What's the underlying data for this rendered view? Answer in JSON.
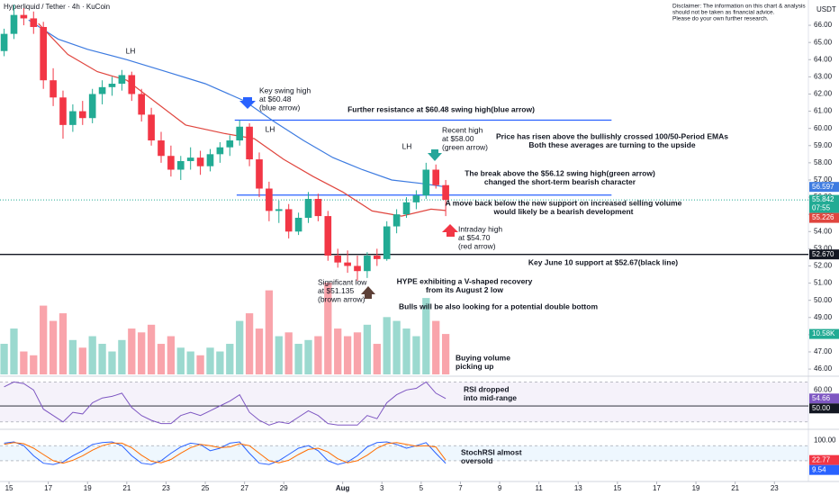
{
  "chart_data": {
    "type": "candlestick",
    "title": "Hyperliquid / Tether · 4h · KuCoin",
    "currency": "USDT",
    "disclaimer": [
      "Disclaimer: The information on this chart & analysis",
      "should not be taken as financial advice.",
      "Please do your own further research."
    ],
    "up_color": "#22ab94",
    "down_color": "#f23645",
    "xlim": [
      14.54,
      55.73
    ],
    "xticks": [
      15,
      17,
      19,
      21,
      23,
      25,
      27,
      29,
      {
        "value": 32,
        "label": "Aug"
      },
      {
        "value": 34,
        "label": "3"
      },
      {
        "value": 36,
        "label": "5"
      },
      {
        "value": 38,
        "label": "7"
      },
      {
        "value": 40,
        "label": "9"
      },
      {
        "value": 42,
        "label": "11"
      },
      {
        "value": 44,
        "label": "13"
      },
      {
        "value": 46,
        "label": "15"
      },
      {
        "value": 48,
        "label": "17"
      },
      {
        "value": 50,
        "label": "19"
      },
      {
        "value": 52,
        "label": "21"
      },
      {
        "value": 54,
        "label": "23"
      }
    ],
    "ylim": [
      45.69,
      67.47
    ],
    "yticks": [
      {
        "value": 46,
        "label": "46.00"
      },
      {
        "value": 47,
        "label": "47.00"
      },
      {
        "value": 48,
        "label": "48.00"
      },
      {
        "value": 49,
        "label": "49.00"
      },
      {
        "value": 50,
        "label": "50.00"
      },
      {
        "value": 51,
        "label": "51.00"
      },
      {
        "value": 52,
        "label": "52.00"
      },
      {
        "value": 53,
        "label": "53.00"
      },
      {
        "value": 54,
        "label": "54.00"
      },
      {
        "value": 55,
        "label": "55.00"
      },
      {
        "value": 56,
        "label": "56.00"
      },
      {
        "value": 57,
        "label": "57.00"
      },
      {
        "value": 58,
        "label": "58.00"
      },
      {
        "value": 59,
        "label": "59.00"
      },
      {
        "value": 60,
        "label": "60.00"
      },
      {
        "value": 61,
        "label": "61.00"
      },
      {
        "value": 62,
        "label": "62.00"
      },
      {
        "value": 63,
        "label": "63.00"
      },
      {
        "value": 64,
        "label": "64.00"
      },
      {
        "value": 65,
        "label": "65.00"
      },
      {
        "value": 66,
        "label": "66.00"
      }
    ],
    "x": [
      14.75,
      15.25,
      15.75,
      16.25,
      16.75,
      17.25,
      17.75,
      18.25,
      18.75,
      19.25,
      19.75,
      20.25,
      20.75,
      21.25,
      21.75,
      22.25,
      22.75,
      23.25,
      23.75,
      24.25,
      24.75,
      25.25,
      25.75,
      26.25,
      26.75,
      27.25,
      27.75,
      28.25,
      28.75,
      29.25,
      29.75,
      30.25,
      30.75,
      31.25,
      31.75,
      32.25,
      32.75,
      33.25,
      33.75,
      34.25,
      34.75,
      35.25,
      35.75,
      36.25,
      36.75,
      37.25
    ],
    "open": [
      64.5,
      65.5,
      66.6,
      66.4,
      65.9,
      62.8,
      61.8,
      60.2,
      61.0,
      60.6,
      62.0,
      62.4,
      62.6,
      63.1,
      62.0,
      60.8,
      59.3,
      58.4,
      57.6,
      58.1,
      58.3,
      57.8,
      58.5,
      58.9,
      59.3,
      60.1,
      58.2,
      56.5,
      55.2,
      55.3,
      54.0,
      54.8,
      55.9,
      54.9,
      52.6,
      52.2,
      52.0,
      51.7,
      52.6,
      52.4,
      54.3,
      55.0,
      55.7,
      56.1,
      57.6,
      56.7
    ],
    "high": [
      65.8,
      67.2,
      67.0,
      66.8,
      66.2,
      63.5,
      62.2,
      61.4,
      61.6,
      62.3,
      62.8,
      63.0,
      63.4,
      63.3,
      62.3,
      61.2,
      59.8,
      59.0,
      58.4,
      58.9,
      58.7,
      58.8,
      59.2,
      59.6,
      60.48,
      60.3,
      58.6,
      56.9,
      55.8,
      55.6,
      55.1,
      56.3,
      56.2,
      55.2,
      53.0,
      52.9,
      52.6,
      52.8,
      53.0,
      54.6,
      55.3,
      56.0,
      56.4,
      58.0,
      57.9,
      57.0
    ],
    "low": [
      64.2,
      65.2,
      66.0,
      65.5,
      62.3,
      61.3,
      59.4,
      59.8,
      60.2,
      60.3,
      61.4,
      61.9,
      62.2,
      61.6,
      60.4,
      59.0,
      58.0,
      57.2,
      57.0,
      57.6,
      57.3,
      57.5,
      58.0,
      58.4,
      59.0,
      57.8,
      56.0,
      54.6,
      54.5,
      53.6,
      53.8,
      54.5,
      54.6,
      52.3,
      51.9,
      51.6,
      51.135,
      51.3,
      52.0,
      52.3,
      53.9,
      54.8,
      55.3,
      55.9,
      56.5,
      54.9
    ],
    "close": [
      65.5,
      66.6,
      66.4,
      65.9,
      62.8,
      61.8,
      60.2,
      61.0,
      60.6,
      62.0,
      62.4,
      62.6,
      63.1,
      62.0,
      60.8,
      59.3,
      58.4,
      57.6,
      58.1,
      58.3,
      57.8,
      58.5,
      58.9,
      59.3,
      60.1,
      58.2,
      56.5,
      55.2,
      55.3,
      54.0,
      54.8,
      55.9,
      54.9,
      52.6,
      52.2,
      52.0,
      51.7,
      52.6,
      52.4,
      54.3,
      55.0,
      55.7,
      56.1,
      57.6,
      56.7,
      55.842
    ],
    "countdown": "07:55",
    "ema_lines": [
      {
        "color": "#3d7be0",
        "x": [
          16,
          17.5,
          19,
          21,
          23,
          25,
          27,
          28.5,
          30,
          31.5,
          33,
          34.5,
          36,
          37.25
        ],
        "values": [
          66.3,
          65.2,
          64.6,
          64.0,
          63.3,
          62.6,
          61.6,
          60.4,
          59.3,
          58.3,
          57.6,
          57.0,
          56.8,
          56.597
        ]
      },
      {
        "color": "#e0463f",
        "x": [
          16.5,
          18,
          19.5,
          21,
          22.5,
          24,
          26,
          27.5,
          29,
          30.5,
          32,
          33.5,
          35,
          36.5,
          37.25
        ],
        "values": [
          66.1,
          64.3,
          63.3,
          62.8,
          61.5,
          60.2,
          59.7,
          59.4,
          58.2,
          57.2,
          56.3,
          55.2,
          54.9,
          55.3,
          55.226
        ]
      }
    ],
    "price_labels": [
      {
        "value": 56.597,
        "color": "#3d7be0"
      },
      {
        "value": 55.842,
        "color": "#22ab94"
      },
      {
        "value": 55.226,
        "color": "#e0463f"
      },
      {
        "value": 52.67,
        "label": "52.670",
        "color": "#131722"
      }
    ],
    "levels": [
      {
        "value": 60.48,
        "color": "#2962ff",
        "from": 26.5,
        "to": 45.7
      },
      {
        "value": 56.12,
        "color": "#2962ff",
        "from": 26.6,
        "to": 45.7
      },
      {
        "value": 52.67,
        "color": "#131722",
        "from": 14.54,
        "to": 55.73
      }
    ],
    "annotations": [
      {
        "lines": [
          "LH"
        ]
      },
      {
        "lines": [
          "Key swing high",
          "at $60.48",
          "(blue arrow)"
        ]
      },
      {
        "lines": [
          "LH"
        ]
      },
      {
        "lines": [
          "Further resistance at $60.48 swing high(blue arrow)"
        ]
      },
      {
        "lines": [
          "LH"
        ]
      },
      {
        "lines": [
          "Recent high",
          "at $58.00",
          "(green arrow)"
        ]
      },
      {
        "lines": [
          "Price has risen above the bullishly crossed 100/50-Period EMAs",
          "Both these averages are turning to the upside"
        ]
      },
      {
        "lines": [
          "The break above the $56.12 swing high(green arrow)",
          "changed the short-term bearish character"
        ]
      },
      {
        "lines": [
          "A move back below the new support on increased selling volume",
          "would likely be a bearish development"
        ]
      },
      {
        "lines": [
          "Intraday high",
          "at $54.70",
          "(red arrow)"
        ]
      },
      {
        "lines": [
          "Key June 10 support at $52.67(black line)"
        ]
      },
      {
        "lines": [
          "Significant low",
          "at $51.135",
          "(brown arrow)"
        ]
      },
      {
        "lines": [
          "HYPE exhibiting a V-shaped recovery",
          "from its August 2 low"
        ]
      },
      {
        "lines": [
          "Bulls will be also looking for a potential double bottom"
        ]
      },
      {
        "lines": [
          "Buying volume",
          "picking up"
        ]
      },
      {
        "lines": [
          "RSI dropped",
          "into mid-range"
        ]
      },
      {
        "lines": [
          "StochRSI almost",
          "oversold"
        ]
      }
    ],
    "volume": {
      "ylim": [
        0,
        24.5
      ],
      "values": [
        8,
        12,
        6,
        5,
        18,
        14,
        16,
        9,
        7,
        10,
        8,
        6,
        9,
        12,
        11,
        13,
        8,
        10,
        7,
        6,
        5,
        7,
        6,
        8,
        14,
        16,
        12,
        22,
        10,
        11,
        8,
        9,
        10,
        24,
        12,
        10,
        11,
        13,
        8,
        15,
        14,
        12,
        10,
        20,
        14,
        10.58
      ],
      "value_labels": [
        null,
        null,
        null,
        null,
        null,
        null,
        null,
        null,
        null,
        null,
        null,
        null,
        null,
        null,
        null,
        null,
        null,
        null,
        null,
        null,
        null,
        null,
        null,
        null,
        null,
        null,
        null,
        null,
        null,
        null,
        null,
        null,
        null,
        null,
        null,
        null,
        null,
        null,
        null,
        null,
        null,
        null,
        null,
        null,
        null,
        "10.58K"
      ]
    },
    "rsi": {
      "color": "#7e57c2",
      "ylim": [
        36.5,
        67.5
      ],
      "band": [
        40,
        65
      ],
      "yticks": [
        {
          "value": 60,
          "label": "60.00"
        }
      ],
      "midline": {
        "value": 50,
        "label": "50.00"
      },
      "values": [
        62,
        65,
        64,
        60,
        48,
        44,
        40,
        46,
        45,
        52,
        55,
        56,
        58,
        49,
        44,
        41,
        39,
        39,
        44,
        46,
        44,
        47,
        50,
        53,
        57,
        46,
        41,
        38,
        40,
        39,
        43,
        47,
        44,
        39,
        38,
        38,
        38,
        44,
        42,
        52,
        57,
        60,
        61,
        65,
        58,
        54.66
      ]
    },
    "stoch": {
      "k_color": "#2962ff",
      "d_color": "#ff6d00",
      "ylim": [
        -59,
        138
      ],
      "band": [
        20,
        80
      ],
      "yticks": [
        {
          "value": 100,
          "label": "100.00"
        }
      ],
      "k": [
        90,
        95,
        80,
        40,
        10,
        5,
        15,
        40,
        60,
        85,
        92,
        95,
        80,
        40,
        10,
        5,
        20,
        50,
        75,
        90,
        85,
        60,
        70,
        90,
        95,
        50,
        10,
        5,
        20,
        45,
        70,
        80,
        60,
        20,
        5,
        15,
        40,
        75,
        92,
        95,
        85,
        70,
        80,
        92,
        50,
        9.54
      ],
      "d": [
        85,
        92,
        88,
        70,
        45,
        20,
        10,
        22,
        40,
        62,
        80,
        90,
        90,
        72,
        42,
        18,
        12,
        25,
        50,
        72,
        85,
        80,
        72,
        75,
        88,
        80,
        50,
        20,
        12,
        22,
        45,
        65,
        70,
        55,
        28,
        12,
        20,
        42,
        70,
        88,
        92,
        85,
        78,
        80,
        75,
        22.77
      ]
    }
  }
}
